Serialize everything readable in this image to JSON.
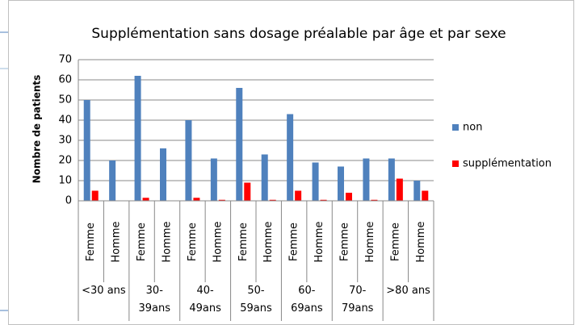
{
  "chart_data": {
    "type": "bar",
    "title": "Supplémentation sans dosage préalable par âge et par sexe",
    "y_label": "Nombre de patients",
    "categories": [
      "Femme",
      "Homme",
      "Femme",
      "Homme",
      "Femme",
      "Homme",
      "Femme",
      "Homme",
      "Femme",
      "Homme",
      "Femme",
      "Homme",
      "Femme",
      "Homme"
    ],
    "groups": [
      "<30 ans",
      "30-\n39ans",
      "40-\n49ans",
      "50-\n59ans",
      "60-\n69ans",
      "70-\n79ans",
      ">80 ans"
    ],
    "series": [
      {
        "name": "non",
        "color": "#4f81bd",
        "values": [
          50,
          20,
          62,
          26,
          40,
          21,
          56,
          23,
          43,
          19,
          17,
          21,
          21,
          10
        ]
      },
      {
        "name": "supplémentation",
        "color": "#ff0000",
        "values": [
          5,
          0,
          1.5,
          0,
          1.5,
          0.5,
          9,
          0.5,
          5,
          0.5,
          4,
          0.5,
          11,
          5
        ]
      }
    ],
    "ylim": [
      0,
      70
    ],
    "yticks": [
      0,
      10,
      20,
      30,
      40,
      50,
      60,
      70
    ],
    "grid": true,
    "legend": "right"
  }
}
